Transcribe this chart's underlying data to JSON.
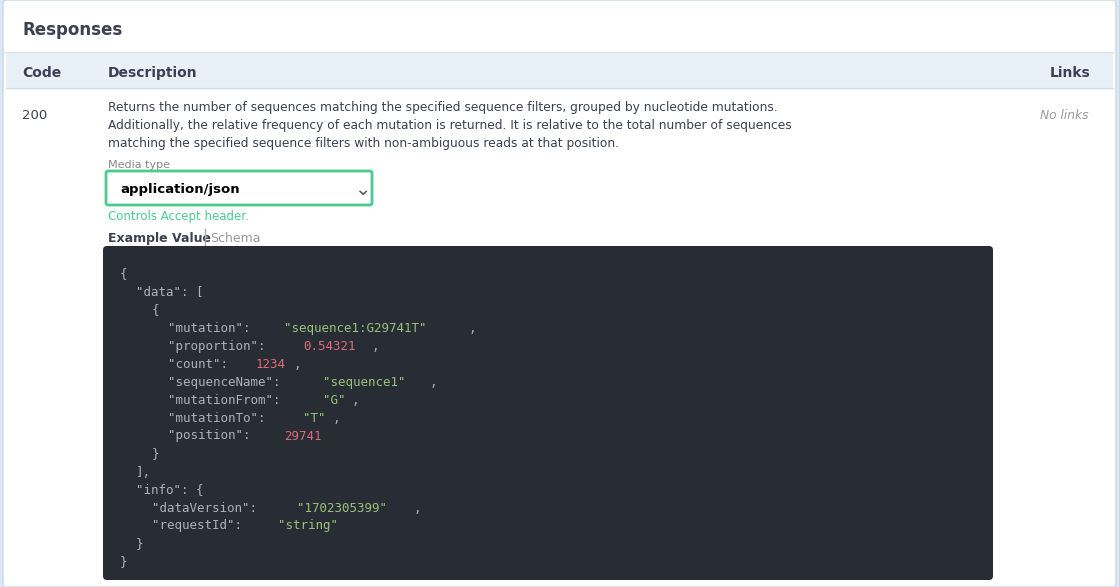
{
  "bg_color": "#dce8f5",
  "panel_bg": "#ffffff",
  "code_bg": "#282c34",
  "title": "Responses",
  "code_label": "Code",
  "desc_label": "Description",
  "links_label": "Links",
  "http_code": "200",
  "description_lines": [
    "Returns the number of sequences matching the specified sequence filters, grouped by nucleotide mutations.",
    "Additionally, the relative frequency of each mutation is returned. It is relative to the total number of sequences",
    "matching the specified sequence filters with non-ambiguous reads at that position."
  ],
  "no_links": "No links",
  "media_type_label": "Media type",
  "media_type_value": "application/json",
  "controls_text": "Controls Accept header.",
  "example_value_label": "Example Value",
  "schema_label": "Schema",
  "dropdown_border": "#49cc90",
  "controls_color": "#49cc90",
  "code_lines": [
    {
      "indent": 0,
      "parts": [
        {
          "text": "{",
          "color": "#abb2bf"
        }
      ]
    },
    {
      "indent": 1,
      "parts": [
        {
          "text": "\"data\": [",
          "color": "#abb2bf"
        }
      ]
    },
    {
      "indent": 2,
      "parts": [
        {
          "text": "{",
          "color": "#abb2bf"
        }
      ]
    },
    {
      "indent": 3,
      "parts": [
        {
          "text": "\"mutation\": ",
          "color": "#abb2bf"
        },
        {
          "text": "\"sequence1:G29741T\"",
          "color": "#98c379"
        },
        {
          "text": ",",
          "color": "#abb2bf"
        }
      ]
    },
    {
      "indent": 3,
      "parts": [
        {
          "text": "\"proportion\": ",
          "color": "#abb2bf"
        },
        {
          "text": "0.54321",
          "color": "#e06c75"
        },
        {
          "text": ",",
          "color": "#abb2bf"
        }
      ]
    },
    {
      "indent": 3,
      "parts": [
        {
          "text": "\"count\": ",
          "color": "#abb2bf"
        },
        {
          "text": "1234",
          "color": "#e06c75"
        },
        {
          "text": ",",
          "color": "#abb2bf"
        }
      ]
    },
    {
      "indent": 3,
      "parts": [
        {
          "text": "\"sequenceName\": ",
          "color": "#abb2bf"
        },
        {
          "text": "\"sequence1\"",
          "color": "#98c379"
        },
        {
          "text": ",",
          "color": "#abb2bf"
        }
      ]
    },
    {
      "indent": 3,
      "parts": [
        {
          "text": "\"mutationFrom\": ",
          "color": "#abb2bf"
        },
        {
          "text": "\"G\"",
          "color": "#98c379"
        },
        {
          "text": ",",
          "color": "#abb2bf"
        }
      ]
    },
    {
      "indent": 3,
      "parts": [
        {
          "text": "\"mutationTo\": ",
          "color": "#abb2bf"
        },
        {
          "text": "\"T\"",
          "color": "#98c379"
        },
        {
          "text": ",",
          "color": "#abb2bf"
        }
      ]
    },
    {
      "indent": 3,
      "parts": [
        {
          "text": "\"position\": ",
          "color": "#abb2bf"
        },
        {
          "text": "29741",
          "color": "#e06c75"
        }
      ]
    },
    {
      "indent": 2,
      "parts": [
        {
          "text": "}",
          "color": "#abb2bf"
        }
      ]
    },
    {
      "indent": 1,
      "parts": [
        {
          "text": "],",
          "color": "#abb2bf"
        }
      ]
    },
    {
      "indent": 1,
      "parts": [
        {
          "text": "\"info\": {",
          "color": "#abb2bf"
        }
      ]
    },
    {
      "indent": 2,
      "parts": [
        {
          "text": "\"dataVersion\": ",
          "color": "#abb2bf"
        },
        {
          "text": "\"1702305399\"",
          "color": "#98c379"
        },
        {
          "text": ",",
          "color": "#abb2bf"
        }
      ]
    },
    {
      "indent": 2,
      "parts": [
        {
          "text": "\"requestId\": ",
          "color": "#abb2bf"
        },
        {
          "text": "\"string\"",
          "color": "#98c379"
        }
      ]
    },
    {
      "indent": 1,
      "parts": [
        {
          "text": "}",
          "color": "#abb2bf"
        }
      ]
    },
    {
      "indent": 0,
      "parts": [
        {
          "text": "}",
          "color": "#abb2bf"
        }
      ]
    }
  ],
  "indent_size": 16,
  "code_font_size": 9.0,
  "header_font_size": 10,
  "title_font_size": 12
}
